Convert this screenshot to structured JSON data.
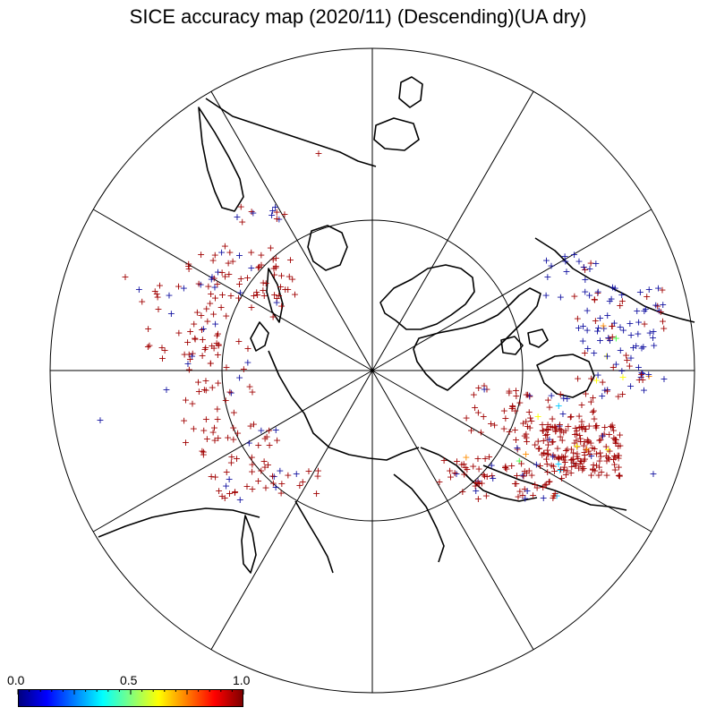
{
  "title": "SICE accuracy map (2020/11) (Descending)(UA dry)",
  "map": {
    "projection": "north polar stereographic",
    "graticule_meridians": 12,
    "graticule_inner_circle": true,
    "colors": {
      "coast": "#000000",
      "grid": "#000000",
      "background": "#ffffff"
    }
  },
  "colorbar": {
    "min_label": "0.0",
    "mid_label": "0.5",
    "max_label": "1.0",
    "colors": [
      "#00007f",
      "#0000ff",
      "#007fff",
      "#00ffff",
      "#7fff7f",
      "#ffff00",
      "#ff7f00",
      "#ff0000",
      "#7f0000"
    ]
  },
  "markers": {
    "symbol": "+",
    "dominant_color": "#a00000",
    "secondary_color": "#1010a0",
    "accent_colors": [
      "#00c8ff",
      "#40ff40",
      "#ffff00",
      "#ff8c00"
    ]
  }
}
